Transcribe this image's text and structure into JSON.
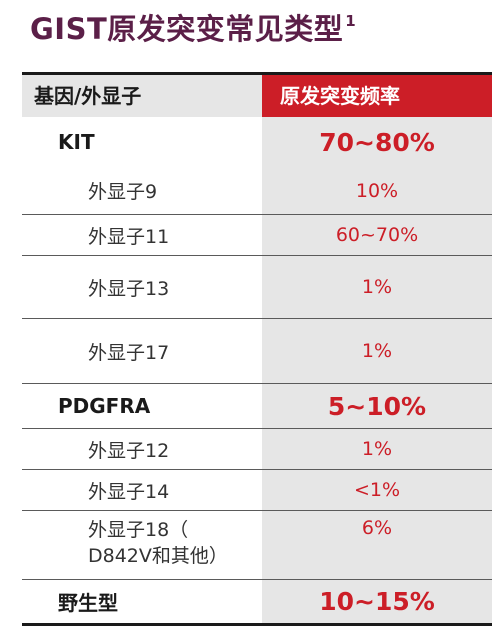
{
  "title": {
    "text": "GIST原发突变常见类型",
    "superscript": "1"
  },
  "table": {
    "header": {
      "gene": "基因/外显子",
      "frequency": "原发突变频率"
    },
    "rows": [
      {
        "gene": "KIT",
        "frequency": "70~80%",
        "kind": "major"
      },
      {
        "gene": "外显子9",
        "frequency": "10%",
        "kind": "minor"
      },
      {
        "gene": "外显子11",
        "frequency": "60~70%",
        "kind": "minor"
      },
      {
        "gene": "外显子13",
        "frequency": "1%",
        "kind": "minor"
      },
      {
        "gene": "外显子17",
        "frequency": "1%",
        "kind": "minor"
      },
      {
        "gene": "PDGFRA",
        "frequency": "5~10%",
        "kind": "major"
      },
      {
        "gene": "外显子12",
        "frequency": "1%",
        "kind": "minor"
      },
      {
        "gene": "外显子14",
        "frequency": "<1%",
        "kind": "minor"
      },
      {
        "gene_line1": "外显子18（",
        "gene_line2": "D842V和其他）",
        "frequency": "6%",
        "kind": "minor"
      },
      {
        "gene": "野生型",
        "frequency": "10~15%",
        "kind": "major"
      }
    ]
  },
  "colors": {
    "title": "#5b1f48",
    "accent_red": "#cc1e27",
    "shade_gray": "#e6e6e6",
    "text_dark": "#1a1a1a"
  }
}
